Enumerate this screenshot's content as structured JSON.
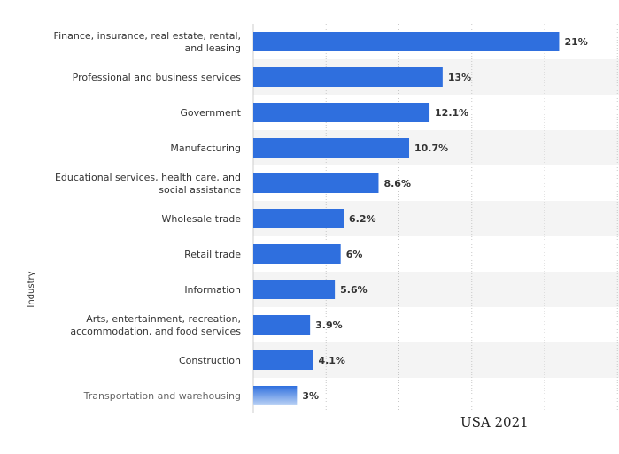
{
  "chart_data": {
    "type": "bar",
    "orientation": "horizontal",
    "ylabel": "Industry",
    "xlim": [
      0,
      25
    ],
    "grid": true,
    "categories": [
      "Finance, insurance, real estate, rental, and leasing",
      "Professional and business services",
      "Government",
      "Manufacturing",
      "Educational services, health care, and social assistance",
      "Wholesale trade",
      "Retail trade",
      "Information",
      "Arts, entertainment, recreation, accommodation, and food services",
      "Construction",
      "Transportation and warehousing"
    ],
    "category_lines": [
      [
        "Finance, insurance, real estate, rental,",
        "and leasing"
      ],
      [
        "Professional and business services"
      ],
      [
        "Government"
      ],
      [
        "Manufacturing"
      ],
      [
        "Educational services, health care, and",
        "social assistance"
      ],
      [
        "Wholesale trade"
      ],
      [
        "Retail trade"
      ],
      [
        "Information"
      ],
      [
        "Arts, entertainment, recreation,",
        "accommodation, and food services"
      ],
      [
        "Construction"
      ],
      [
        "Transportation and warehousing"
      ]
    ],
    "values": [
      21,
      13,
      12.1,
      10.7,
      8.6,
      6.2,
      6,
      5.6,
      3.9,
      4.1,
      3
    ],
    "value_labels": [
      "21%",
      "13%",
      "12.1%",
      "10.7%",
      "8.6%",
      "6.2%",
      "6%",
      "5.6%",
      "3.9%",
      "4.1%",
      "3%"
    ],
    "bar_color": "#2f6fde",
    "caption": "USA  2021"
  }
}
